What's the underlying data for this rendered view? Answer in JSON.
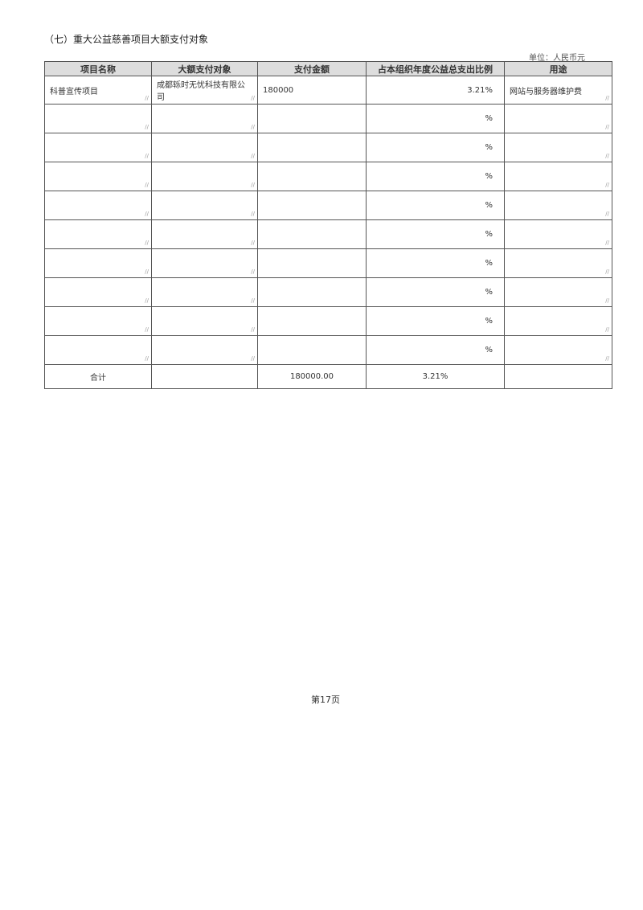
{
  "section_title": "（七）重大公益慈善项目大额支付对象",
  "unit_label": "单位：人民币元",
  "table": {
    "headers": [
      "项目名称",
      "大额支付对象",
      "支付金额",
      "占本组织年度公益总支出比例",
      "用途"
    ],
    "rows": [
      {
        "project": "科普宣传项目",
        "payee": "成都轹时无忧科技有限公司",
        "amount": "180000",
        "ratio": "3.21%",
        "purpose": "网站与服务器维护费"
      },
      {
        "project": "",
        "payee": "",
        "amount": "",
        "ratio": "%",
        "purpose": ""
      },
      {
        "project": "",
        "payee": "",
        "amount": "",
        "ratio": "%",
        "purpose": ""
      },
      {
        "project": "",
        "payee": "",
        "amount": "",
        "ratio": "%",
        "purpose": ""
      },
      {
        "project": "",
        "payee": "",
        "amount": "",
        "ratio": "%",
        "purpose": ""
      },
      {
        "project": "",
        "payee": "",
        "amount": "",
        "ratio": "%",
        "purpose": ""
      },
      {
        "project": "",
        "payee": "",
        "amount": "",
        "ratio": "%",
        "purpose": ""
      },
      {
        "project": "",
        "payee": "",
        "amount": "",
        "ratio": "%",
        "purpose": ""
      },
      {
        "project": "",
        "payee": "",
        "amount": "",
        "ratio": "%",
        "purpose": ""
      },
      {
        "project": "",
        "payee": "",
        "amount": "",
        "ratio": "%",
        "purpose": ""
      }
    ],
    "total": {
      "label": "合计",
      "payee": "",
      "amount": "180000.00",
      "ratio": "3.21%",
      "purpose": ""
    }
  },
  "page_number": "第17页"
}
